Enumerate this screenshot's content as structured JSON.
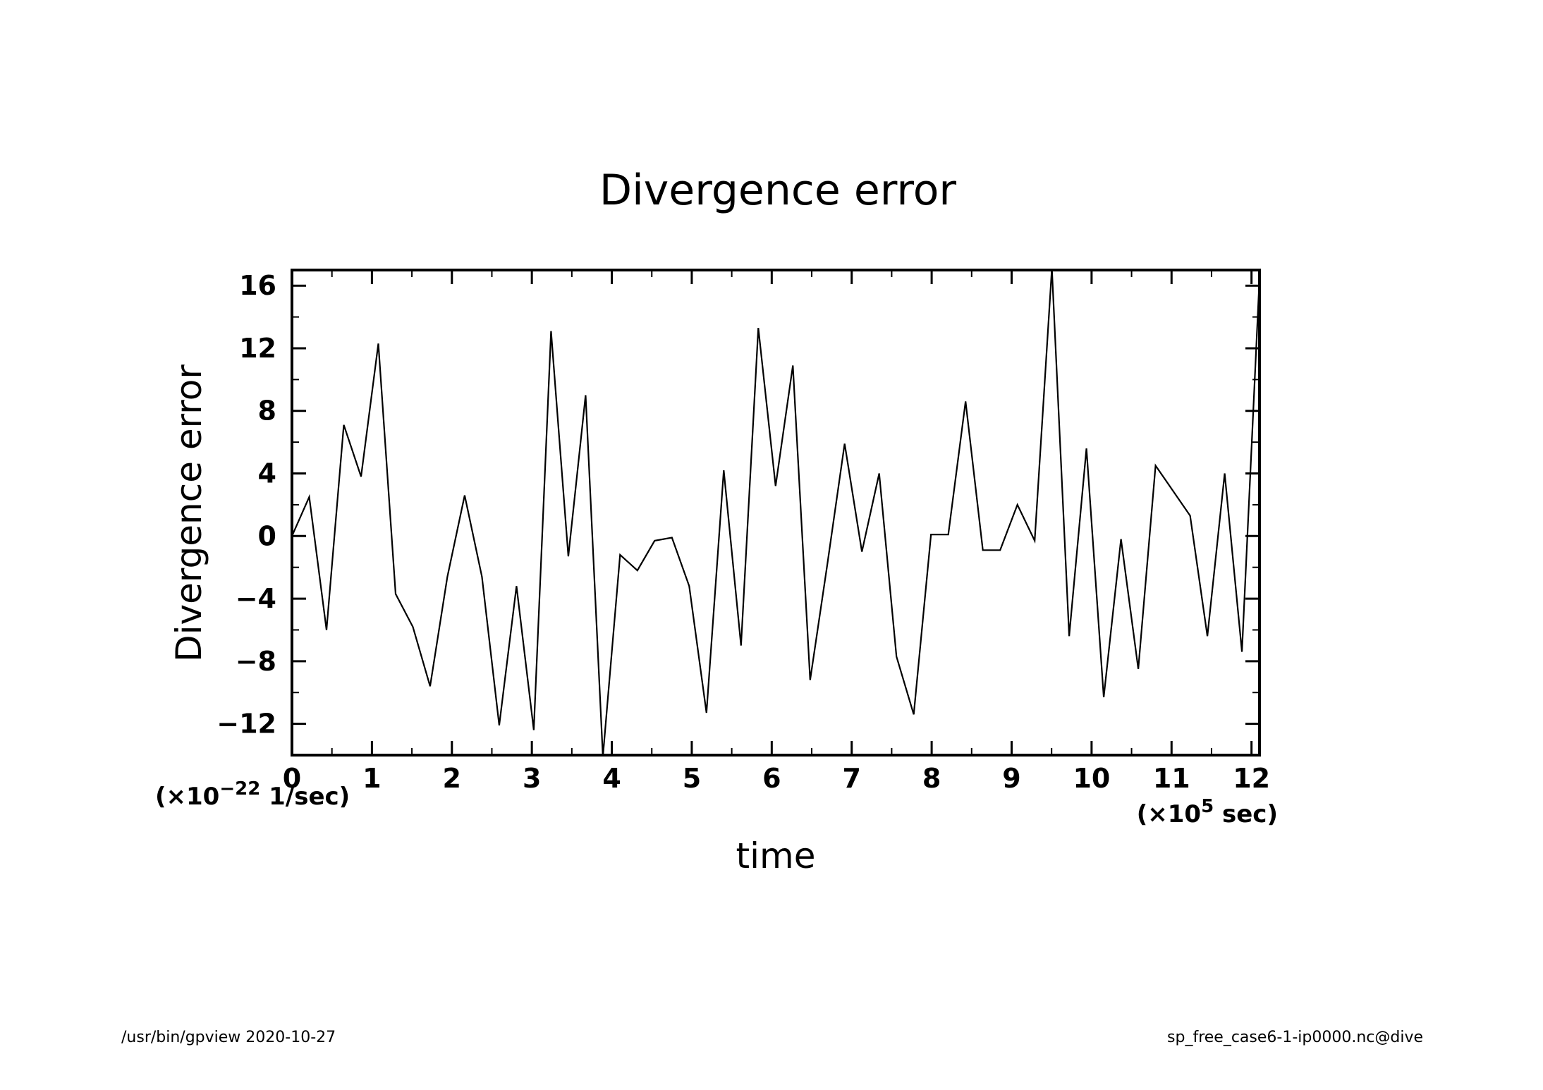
{
  "chart_data": {
    "type": "line",
    "title": "Divergence error",
    "xlabel": "time",
    "ylabel": "Divergence error",
    "x_unit_label": "(×10",
    "x_unit_exp": "5",
    "x_unit_tail": " sec)",
    "y_unit_label": "(×10",
    "y_unit_exp": "−22",
    "y_unit_tail": " 1/sec)",
    "xlim": [
      0,
      12.1
    ],
    "ylim": [
      -14,
      17
    ],
    "x_ticks": [
      "0",
      "1",
      "2",
      "3",
      "4",
      "5",
      "6",
      "7",
      "8",
      "9",
      "10",
      "11",
      "12"
    ],
    "y_ticks": [
      "−12",
      "−8",
      "−4",
      "0",
      "4",
      "8",
      "12",
      "16"
    ],
    "series": [
      {
        "x": [
          0,
          0.216,
          0.432,
          0.648,
          0.864,
          1.08,
          1.296,
          1.512,
          1.728,
          1.944,
          2.16,
          2.376,
          2.592,
          2.808,
          3.024,
          3.24,
          3.456,
          3.672,
          3.888,
          4.104,
          4.32,
          4.536,
          4.752,
          4.968,
          5.184,
          5.4,
          5.616,
          5.832,
          6.048,
          6.264,
          6.48,
          6.696,
          6.912,
          7.128,
          7.344,
          7.56,
          7.776,
          7.992,
          8.208,
          8.424,
          8.64,
          8.856,
          9.072,
          9.288,
          9.504,
          9.72,
          9.936,
          10.152,
          10.368,
          10.584,
          10.8,
          11.016,
          11.232,
          11.448,
          11.664,
          11.88,
          12.096
        ],
        "values": [
          0,
          2.5,
          -6,
          7.1,
          3.8,
          12.3,
          -3.7,
          -5.8,
          -9.6,
          -2.6,
          2.6,
          -2.6,
          -12.1,
          -3.2,
          -12.4,
          13.1,
          -1.3,
          9,
          -14.1,
          -1.2,
          -2.2,
          -0.3,
          -0.1,
          -3.2,
          -11.3,
          4.2,
          -7,
          13.3,
          3.2,
          10.9,
          -9.2,
          -1.8,
          5.9,
          -1,
          4,
          -7.7,
          -11.4,
          0.1,
          0.1,
          8.6,
          -0.9,
          -0.9,
          2,
          -0.3,
          17.1,
          -6.4,
          5.6,
          -10.3,
          -0.2,
          -8.5,
          4.5,
          2.9,
          1.3,
          -6.4,
          4,
          -7.4,
          16
        ]
      }
    ]
  },
  "footer": {
    "left": "/usr/bin/gpview   2020-10-27",
    "right": "sp_free_case6-1-ip0000.nc@dive"
  }
}
